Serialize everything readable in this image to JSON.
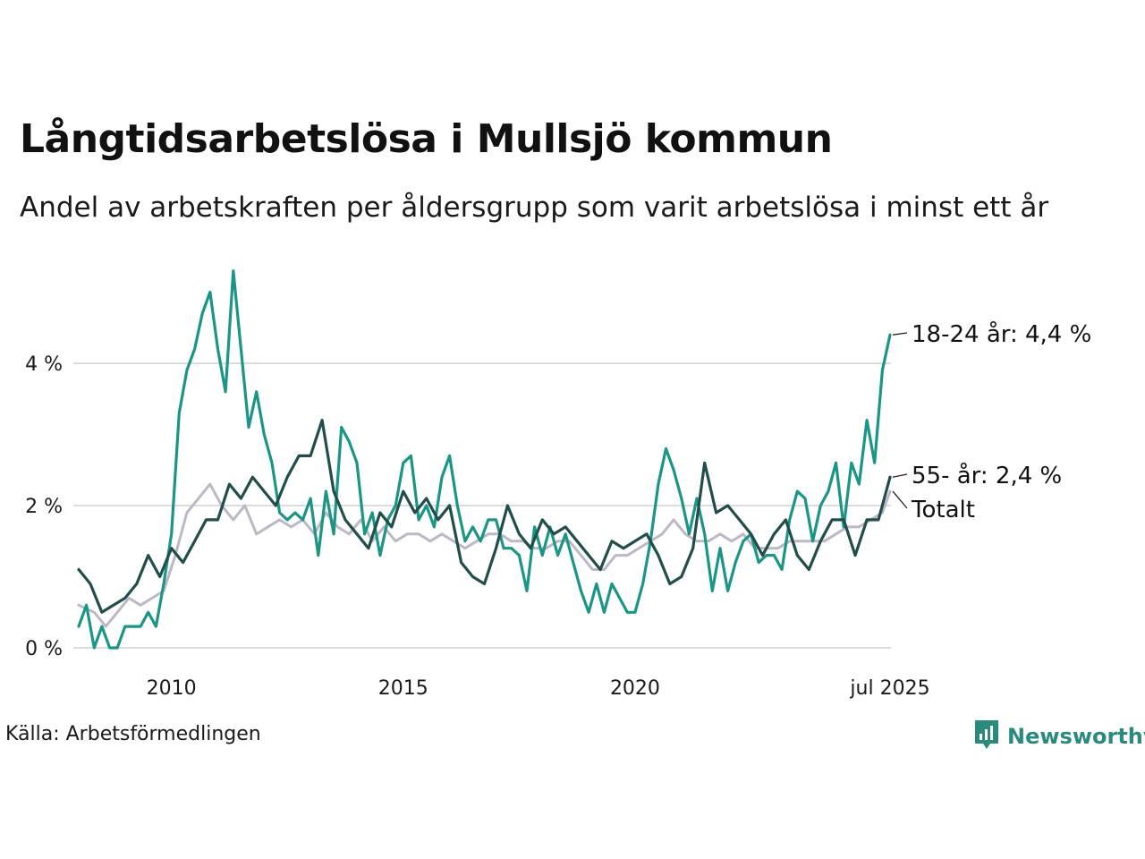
{
  "title": "Långtidsarbetslösa i Mullsjö kommun",
  "subtitle": "Andel av arbetskraften per åldersgrupp som varit arbetslösa i minst ett år",
  "source": "Källa: Arbetsförmedlingen",
  "brand": {
    "name": "Newsworthy",
    "color": "#2a8a7e",
    "icon": "newsworthy-logo-icon"
  },
  "chart_data": {
    "type": "line",
    "title": "Långtidsarbetslösa i Mullsjö kommun",
    "subtitle": "Andel av arbetskraften per åldersgrupp som varit arbetslösa i minst ett år",
    "xlabel": "",
    "ylabel": "",
    "x_range": [
      "2008-01",
      "2025-07"
    ],
    "x_ticks": [
      {
        "date": "2010-01",
        "label": "2010"
      },
      {
        "date": "2015-01",
        "label": "2015"
      },
      {
        "date": "2020-01",
        "label": "2020"
      },
      {
        "date": "2025-07",
        "label": "jul 2025"
      }
    ],
    "y_ticks": [
      {
        "value": 0,
        "label": "0 %"
      },
      {
        "value": 2,
        "label": "2 %"
      },
      {
        "value": 4,
        "label": "4 %"
      }
    ],
    "ylim": [
      0,
      5.4
    ],
    "grid": "horizontal",
    "series": [
      {
        "name": "Totalt",
        "end_label": "Totalt",
        "color": "#bcb8c6",
        "points": [
          [
            "2008-01",
            0.6
          ],
          [
            "2008-05",
            0.5
          ],
          [
            "2008-08",
            0.3
          ],
          [
            "2008-11",
            0.5
          ],
          [
            "2009-02",
            0.7
          ],
          [
            "2009-05",
            0.6
          ],
          [
            "2009-08",
            0.7
          ],
          [
            "2009-11",
            0.8
          ],
          [
            "2010-02",
            1.3
          ],
          [
            "2010-05",
            1.9
          ],
          [
            "2010-08",
            2.1
          ],
          [
            "2010-11",
            2.3
          ],
          [
            "2011-02",
            2.0
          ],
          [
            "2011-05",
            1.8
          ],
          [
            "2011-08",
            2.0
          ],
          [
            "2011-11",
            1.6
          ],
          [
            "2012-02",
            1.7
          ],
          [
            "2012-05",
            1.8
          ],
          [
            "2012-08",
            1.7
          ],
          [
            "2012-11",
            1.8
          ],
          [
            "2013-02",
            1.6
          ],
          [
            "2013-05",
            1.9
          ],
          [
            "2013-08",
            1.7
          ],
          [
            "2013-11",
            1.6
          ],
          [
            "2014-02",
            1.8
          ],
          [
            "2014-05",
            1.5
          ],
          [
            "2014-08",
            1.7
          ],
          [
            "2014-11",
            1.5
          ],
          [
            "2015-02",
            1.6
          ],
          [
            "2015-05",
            1.6
          ],
          [
            "2015-08",
            1.5
          ],
          [
            "2015-11",
            1.6
          ],
          [
            "2016-02",
            1.5
          ],
          [
            "2016-05",
            1.4
          ],
          [
            "2016-08",
            1.5
          ],
          [
            "2016-11",
            1.6
          ],
          [
            "2017-02",
            1.6
          ],
          [
            "2017-05",
            1.5
          ],
          [
            "2017-08",
            1.5
          ],
          [
            "2017-11",
            1.4
          ],
          [
            "2018-02",
            1.4
          ],
          [
            "2018-05",
            1.5
          ],
          [
            "2018-08",
            1.5
          ],
          [
            "2018-11",
            1.3
          ],
          [
            "2019-02",
            1.1
          ],
          [
            "2019-05",
            1.1
          ],
          [
            "2019-08",
            1.3
          ],
          [
            "2019-11",
            1.3
          ],
          [
            "2020-02",
            1.4
          ],
          [
            "2020-05",
            1.5
          ],
          [
            "2020-08",
            1.6
          ],
          [
            "2020-11",
            1.8
          ],
          [
            "2021-02",
            1.6
          ],
          [
            "2021-05",
            1.5
          ],
          [
            "2021-08",
            1.5
          ],
          [
            "2021-11",
            1.6
          ],
          [
            "2022-02",
            1.5
          ],
          [
            "2022-05",
            1.6
          ],
          [
            "2022-08",
            1.4
          ],
          [
            "2022-11",
            1.4
          ],
          [
            "2023-02",
            1.4
          ],
          [
            "2023-05",
            1.5
          ],
          [
            "2023-08",
            1.5
          ],
          [
            "2023-11",
            1.5
          ],
          [
            "2024-02",
            1.5
          ],
          [
            "2024-05",
            1.6
          ],
          [
            "2024-08",
            1.7
          ],
          [
            "2024-11",
            1.7
          ],
          [
            "2025-02",
            1.8
          ],
          [
            "2025-05",
            1.9
          ],
          [
            "2025-07",
            2.2
          ]
        ]
      },
      {
        "name": "18-24 år",
        "end_label": "18-24 år: 4,4 %",
        "color": "#1b9585",
        "points": [
          [
            "2008-01",
            0.3
          ],
          [
            "2008-03",
            0.6
          ],
          [
            "2008-05",
            0.0
          ],
          [
            "2008-07",
            0.3
          ],
          [
            "2008-09",
            0.0
          ],
          [
            "2008-11",
            0.0
          ],
          [
            "2009-01",
            0.3
          ],
          [
            "2009-03",
            0.3
          ],
          [
            "2009-05",
            0.3
          ],
          [
            "2009-07",
            0.5
          ],
          [
            "2009-09",
            0.3
          ],
          [
            "2009-11",
            0.9
          ],
          [
            "2010-01",
            1.6
          ],
          [
            "2010-03",
            3.3
          ],
          [
            "2010-05",
            3.9
          ],
          [
            "2010-07",
            4.2
          ],
          [
            "2010-09",
            4.7
          ],
          [
            "2010-11",
            5.0
          ],
          [
            "2011-01",
            4.2
          ],
          [
            "2011-03",
            3.6
          ],
          [
            "2011-05",
            5.3
          ],
          [
            "2011-07",
            4.2
          ],
          [
            "2011-09",
            3.1
          ],
          [
            "2011-11",
            3.6
          ],
          [
            "2012-01",
            3.0
          ],
          [
            "2012-03",
            2.6
          ],
          [
            "2012-05",
            1.9
          ],
          [
            "2012-07",
            1.8
          ],
          [
            "2012-09",
            1.9
          ],
          [
            "2012-11",
            1.8
          ],
          [
            "2013-01",
            2.1
          ],
          [
            "2013-03",
            1.3
          ],
          [
            "2013-05",
            2.2
          ],
          [
            "2013-07",
            1.6
          ],
          [
            "2013-09",
            3.1
          ],
          [
            "2013-11",
            2.9
          ],
          [
            "2014-01",
            2.6
          ],
          [
            "2014-03",
            1.6
          ],
          [
            "2014-05",
            1.9
          ],
          [
            "2014-07",
            1.3
          ],
          [
            "2014-09",
            1.8
          ],
          [
            "2014-11",
            2.0
          ],
          [
            "2015-01",
            2.6
          ],
          [
            "2015-03",
            2.7
          ],
          [
            "2015-05",
            1.8
          ],
          [
            "2015-07",
            2.0
          ],
          [
            "2015-09",
            1.7
          ],
          [
            "2015-11",
            2.4
          ],
          [
            "2016-01",
            2.7
          ],
          [
            "2016-03",
            2.0
          ],
          [
            "2016-05",
            1.5
          ],
          [
            "2016-07",
            1.7
          ],
          [
            "2016-09",
            1.5
          ],
          [
            "2016-11",
            1.8
          ],
          [
            "2017-01",
            1.8
          ],
          [
            "2017-03",
            1.4
          ],
          [
            "2017-05",
            1.4
          ],
          [
            "2017-07",
            1.3
          ],
          [
            "2017-09",
            0.8
          ],
          [
            "2017-11",
            1.7
          ],
          [
            "2018-01",
            1.3
          ],
          [
            "2018-03",
            1.7
          ],
          [
            "2018-05",
            1.3
          ],
          [
            "2018-07",
            1.6
          ],
          [
            "2018-09",
            1.2
          ],
          [
            "2018-11",
            0.8
          ],
          [
            "2019-01",
            0.5
          ],
          [
            "2019-03",
            0.9
          ],
          [
            "2019-05",
            0.5
          ],
          [
            "2019-07",
            0.9
          ],
          [
            "2019-09",
            0.7
          ],
          [
            "2019-11",
            0.5
          ],
          [
            "2020-01",
            0.5
          ],
          [
            "2020-03",
            0.9
          ],
          [
            "2020-05",
            1.5
          ],
          [
            "2020-07",
            2.3
          ],
          [
            "2020-09",
            2.8
          ],
          [
            "2020-11",
            2.5
          ],
          [
            "2021-01",
            2.1
          ],
          [
            "2021-03",
            1.6
          ],
          [
            "2021-05",
            2.1
          ],
          [
            "2021-07",
            1.6
          ],
          [
            "2021-09",
            0.8
          ],
          [
            "2021-11",
            1.4
          ],
          [
            "2022-01",
            0.8
          ],
          [
            "2022-03",
            1.2
          ],
          [
            "2022-05",
            1.5
          ],
          [
            "2022-07",
            1.6
          ],
          [
            "2022-09",
            1.2
          ],
          [
            "2022-11",
            1.3
          ],
          [
            "2023-01",
            1.3
          ],
          [
            "2023-03",
            1.1
          ],
          [
            "2023-05",
            1.8
          ],
          [
            "2023-07",
            2.2
          ],
          [
            "2023-09",
            2.1
          ],
          [
            "2023-11",
            1.5
          ],
          [
            "2024-01",
            2.0
          ],
          [
            "2024-03",
            2.2
          ],
          [
            "2024-05",
            2.6
          ],
          [
            "2024-07",
            1.7
          ],
          [
            "2024-09",
            2.6
          ],
          [
            "2024-11",
            2.3
          ],
          [
            "2025-01",
            3.2
          ],
          [
            "2025-03",
            2.6
          ],
          [
            "2025-05",
            3.9
          ],
          [
            "2025-07",
            4.4
          ]
        ]
      },
      {
        "name": "55- år",
        "end_label": "55- år: 2,4 %",
        "color": "#214e4a",
        "points": [
          [
            "2008-01",
            1.1
          ],
          [
            "2008-04",
            0.9
          ],
          [
            "2008-07",
            0.5
          ],
          [
            "2008-10",
            0.6
          ],
          [
            "2009-01",
            0.7
          ],
          [
            "2009-04",
            0.9
          ],
          [
            "2009-07",
            1.3
          ],
          [
            "2009-10",
            1.0
          ],
          [
            "2010-01",
            1.4
          ],
          [
            "2010-04",
            1.2
          ],
          [
            "2010-07",
            1.5
          ],
          [
            "2010-10",
            1.8
          ],
          [
            "2011-01",
            1.8
          ],
          [
            "2011-04",
            2.3
          ],
          [
            "2011-07",
            2.1
          ],
          [
            "2011-10",
            2.4
          ],
          [
            "2012-01",
            2.2
          ],
          [
            "2012-04",
            2.0
          ],
          [
            "2012-07",
            2.4
          ],
          [
            "2012-10",
            2.7
          ],
          [
            "2013-01",
            2.7
          ],
          [
            "2013-04",
            3.2
          ],
          [
            "2013-07",
            2.2
          ],
          [
            "2013-10",
            1.8
          ],
          [
            "2014-01",
            1.6
          ],
          [
            "2014-04",
            1.4
          ],
          [
            "2014-07",
            1.9
          ],
          [
            "2014-10",
            1.7
          ],
          [
            "2015-01",
            2.2
          ],
          [
            "2015-04",
            1.9
          ],
          [
            "2015-07",
            2.1
          ],
          [
            "2015-10",
            1.8
          ],
          [
            "2016-01",
            2.0
          ],
          [
            "2016-04",
            1.2
          ],
          [
            "2016-07",
            1.0
          ],
          [
            "2016-10",
            0.9
          ],
          [
            "2017-01",
            1.4
          ],
          [
            "2017-04",
            2.0
          ],
          [
            "2017-07",
            1.6
          ],
          [
            "2017-10",
            1.4
          ],
          [
            "2018-01",
            1.8
          ],
          [
            "2018-04",
            1.6
          ],
          [
            "2018-07",
            1.7
          ],
          [
            "2018-10",
            1.5
          ],
          [
            "2019-01",
            1.3
          ],
          [
            "2019-04",
            1.1
          ],
          [
            "2019-07",
            1.5
          ],
          [
            "2019-10",
            1.4
          ],
          [
            "2020-01",
            1.5
          ],
          [
            "2020-04",
            1.6
          ],
          [
            "2020-07",
            1.3
          ],
          [
            "2020-10",
            0.9
          ],
          [
            "2021-01",
            1.0
          ],
          [
            "2021-04",
            1.4
          ],
          [
            "2021-07",
            2.6
          ],
          [
            "2021-10",
            1.9
          ],
          [
            "2022-01",
            2.0
          ],
          [
            "2022-04",
            1.8
          ],
          [
            "2022-07",
            1.6
          ],
          [
            "2022-10",
            1.3
          ],
          [
            "2023-01",
            1.6
          ],
          [
            "2023-04",
            1.8
          ],
          [
            "2023-07",
            1.3
          ],
          [
            "2023-10",
            1.1
          ],
          [
            "2024-01",
            1.5
          ],
          [
            "2024-04",
            1.8
          ],
          [
            "2024-07",
            1.8
          ],
          [
            "2024-10",
            1.3
          ],
          [
            "2025-01",
            1.8
          ],
          [
            "2025-04",
            1.8
          ],
          [
            "2025-07",
            2.4
          ]
        ]
      }
    ]
  }
}
